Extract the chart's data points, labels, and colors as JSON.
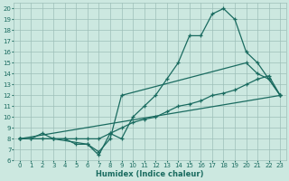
{
  "xlabel": "Humidex (Indice chaleur)",
  "bg_color": "#cce8e0",
  "grid_color": "#9dbfb8",
  "line_color": "#1a6b60",
  "xlim": [
    -0.5,
    23.5
  ],
  "ylim": [
    6,
    20.5
  ],
  "xticks": [
    0,
    1,
    2,
    3,
    4,
    5,
    6,
    7,
    8,
    9,
    10,
    11,
    12,
    13,
    14,
    15,
    16,
    17,
    18,
    19,
    20,
    21,
    22,
    23
  ],
  "yticks": [
    6,
    7,
    8,
    9,
    10,
    11,
    12,
    13,
    14,
    15,
    16,
    17,
    18,
    19,
    20
  ],
  "line1_x": [
    0,
    1,
    2,
    3,
    4,
    5,
    6,
    7,
    8,
    9,
    10,
    11,
    12,
    13,
    14,
    15,
    16,
    17,
    18,
    19,
    20,
    21,
    22,
    23
  ],
  "line1_y": [
    8,
    8,
    8.5,
    8,
    8,
    7.5,
    7.5,
    6.5,
    8.5,
    8,
    10,
    11,
    12,
    13.5,
    15,
    17.5,
    17.5,
    19.5,
    20,
    19,
    16,
    15,
    13.5,
    12
  ],
  "line2_x": [
    0,
    23
  ],
  "line2_y": [
    8,
    12
  ],
  "line3_x": [
    0,
    1,
    2,
    3,
    4,
    5,
    6,
    7,
    8,
    9,
    10,
    11,
    12,
    13,
    14,
    15,
    16,
    17,
    18,
    19,
    20,
    21,
    22,
    23
  ],
  "line3_y": [
    8,
    8,
    8,
    8,
    8,
    8,
    8,
    8,
    8.5,
    9,
    9.5,
    9.8,
    10,
    10.5,
    11,
    11.2,
    11.5,
    12,
    12.2,
    12.5,
    13,
    13.5,
    13.8,
    12
  ],
  "line4_x": [
    0,
    3,
    6,
    7,
    8,
    9,
    20,
    21,
    22,
    23
  ],
  "line4_y": [
    8,
    8,
    7.5,
    6.8,
    8,
    12,
    15,
    14,
    13.5,
    12
  ]
}
